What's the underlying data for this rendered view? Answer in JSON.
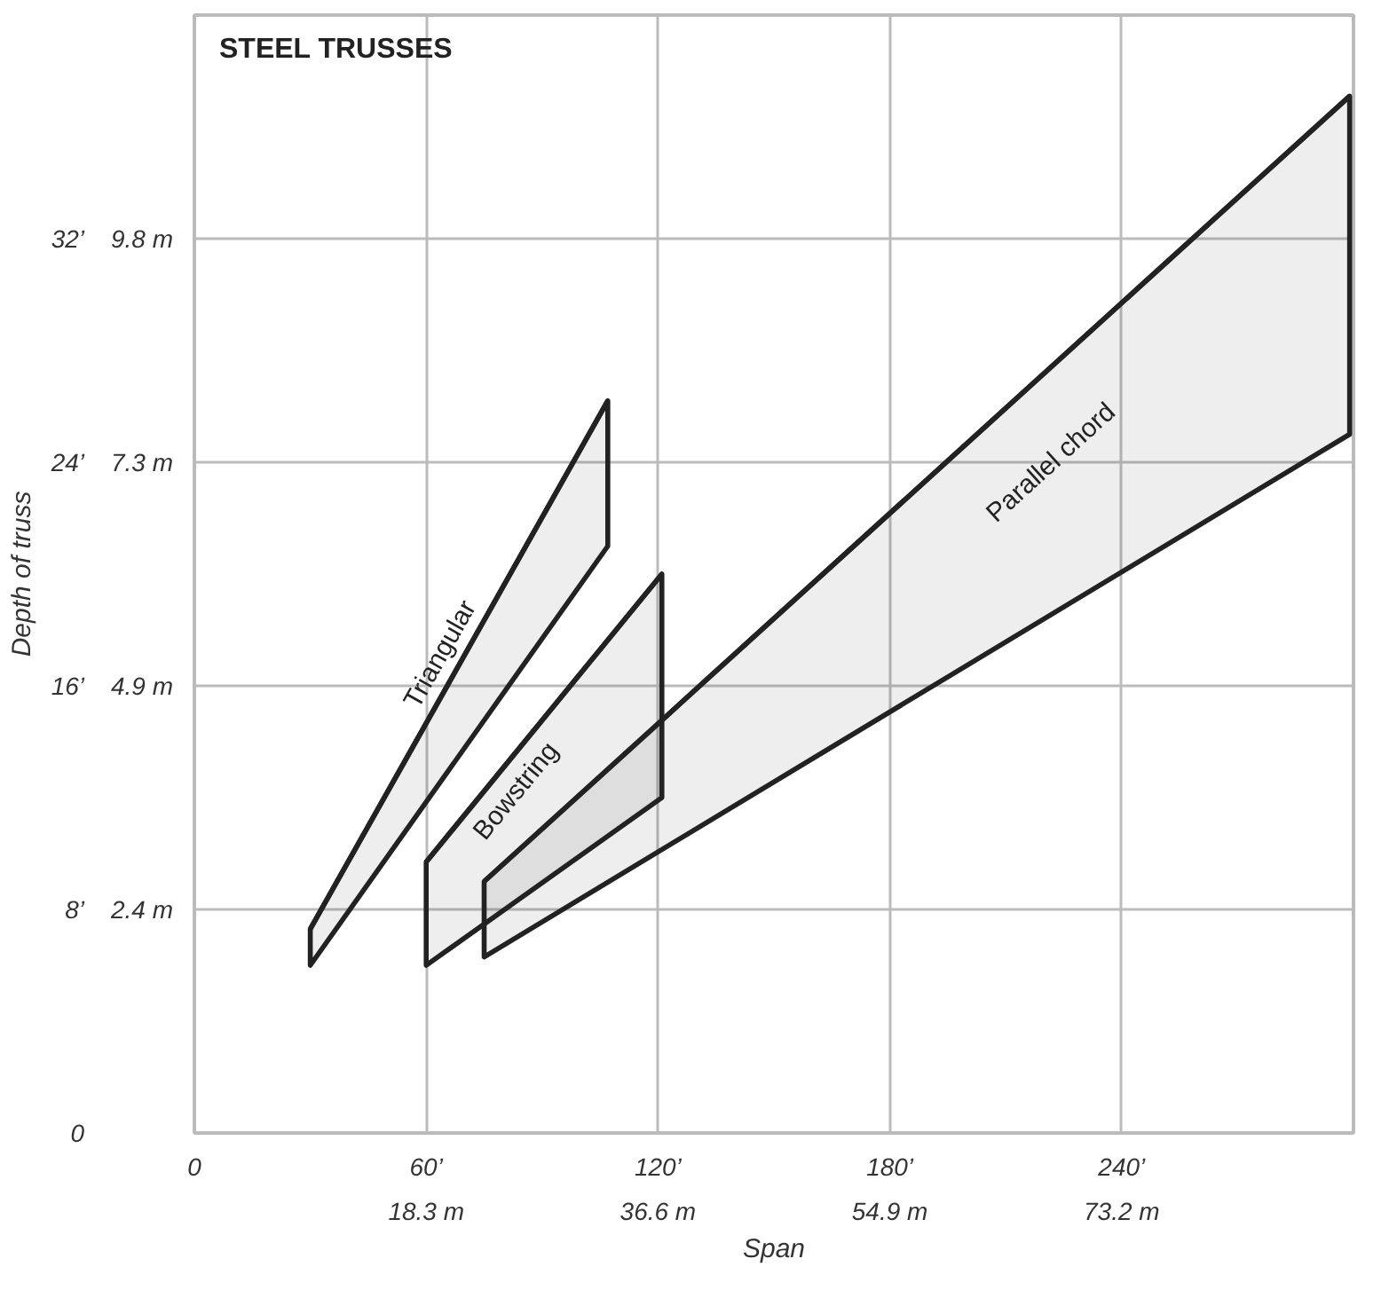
{
  "chart_data": {
    "type": "line",
    "title": "STEEL TRUSSES",
    "xlabel": "Span",
    "ylabel": "Depth of truss",
    "xlim": [
      0,
      300
    ],
    "ylim": [
      0,
      40
    ],
    "xticks": [
      0,
      {
        "value": 60,
        "label": "60’"
      },
      {
        "value": 120,
        "label": "120’"
      },
      {
        "value": 180,
        "label": "180’"
      },
      {
        "value": 240,
        "label": "240’"
      }
    ],
    "yticks": [
      0,
      {
        "value": 8,
        "label": "8’"
      },
      {
        "value": 16,
        "label": "16’"
      },
      {
        "value": 24,
        "label": "24’"
      },
      {
        "value": 32,
        "label": "32’"
      }
    ],
    "x2lim": [
      0,
      91.44
    ],
    "x2ticks": [
      {
        "value": 18.288,
        "label": "18.3 m"
      },
      {
        "value": 36.576,
        "label": "36.6 m"
      },
      {
        "value": 54.864,
        "label": "54.9 m"
      },
      {
        "value": 73.152,
        "label": "73.2 m"
      }
    ],
    "y2lim": [
      0,
      12.192
    ],
    "y2ticks": [
      {
        "value": 2.438,
        "label": "2.4 m"
      },
      {
        "value": 4.877,
        "label": "4.9 m"
      },
      {
        "value": 7.315,
        "label": "7.3 m"
      },
      {
        "value": 9.754,
        "label": "9.8 m"
      }
    ],
    "grid": true,
    "line_style": "solid",
    "series": [
      {
        "name": "Triangular",
        "color": "#222222",
        "x": [
          30,
          107
        ],
        "values": [
          7.3,
          26.2
        ],
        "lower": [
          6,
          21
        ],
        "upper": [
          7.3,
          26.2
        ]
      },
      {
        "name": "Bowstring",
        "color": "#222222",
        "x": [
          60,
          121
        ],
        "values": [
          9.7,
          20
        ],
        "lower": [
          6,
          12
        ],
        "upper": [
          9.7,
          20
        ]
      },
      {
        "name": "Parallel chord",
        "color": "#222222",
        "x": [
          75,
          299
        ],
        "values": [
          9,
          37.1
        ],
        "lower": [
          6.3,
          25
        ],
        "upper": [
          9,
          37.1
        ]
      }
    ]
  }
}
